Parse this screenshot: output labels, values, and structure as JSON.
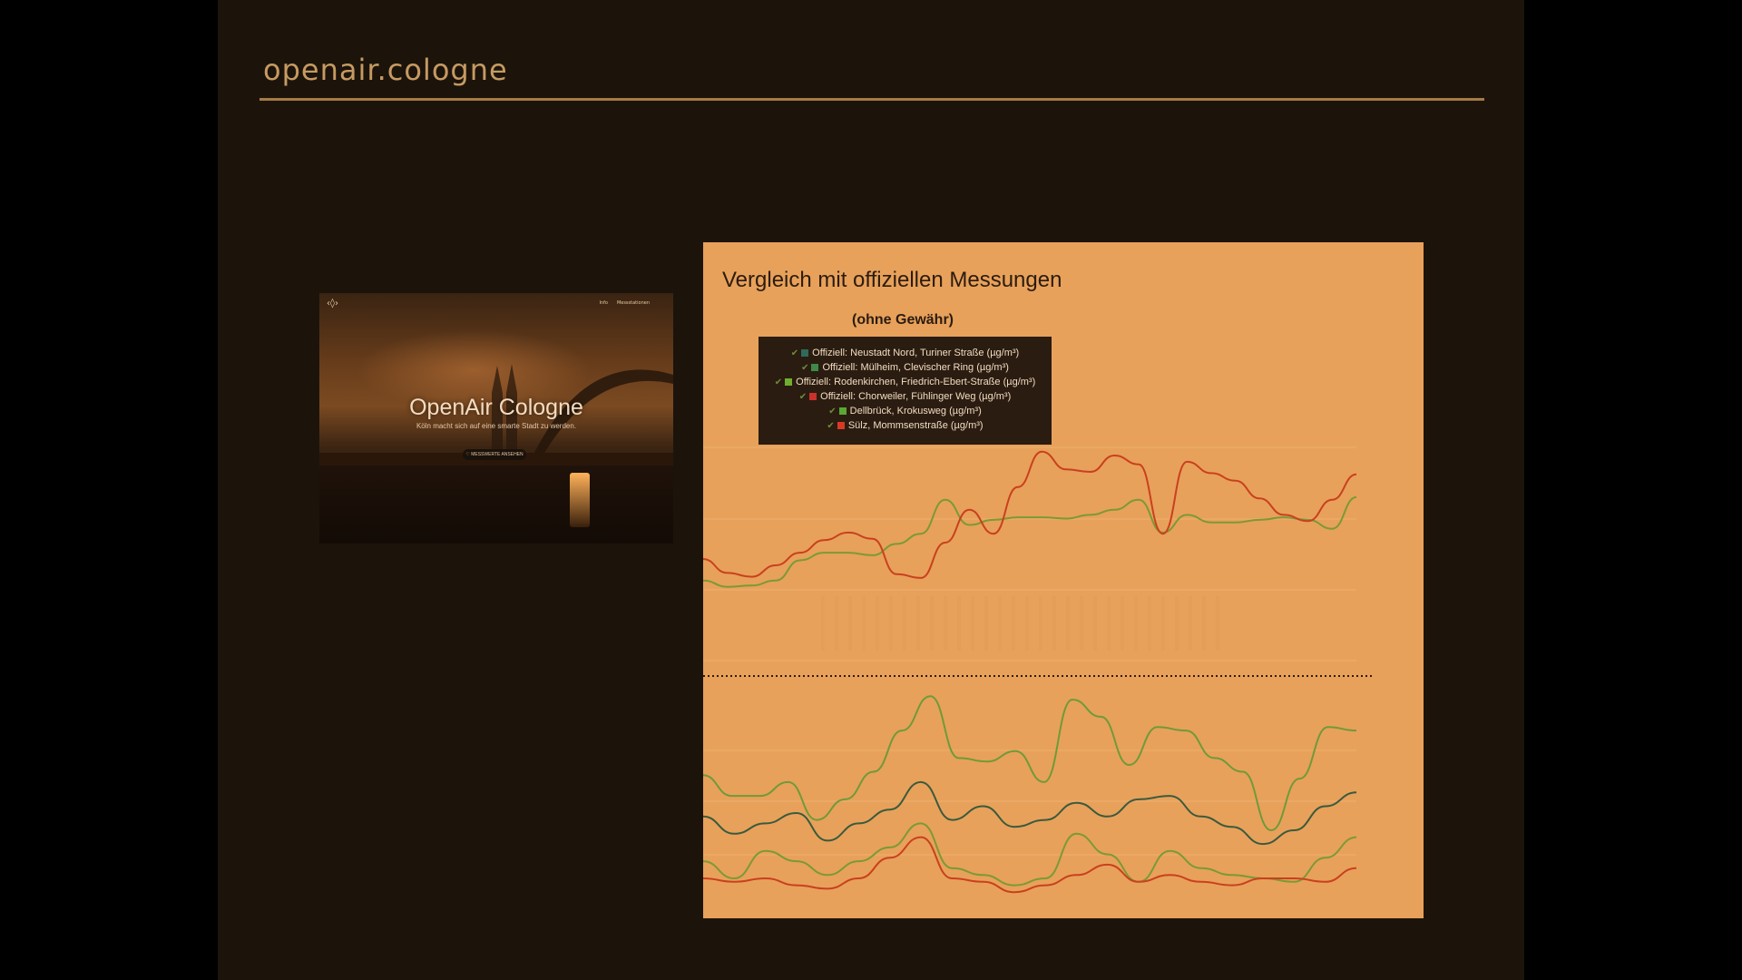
{
  "slide": {
    "title": "openair.cologne"
  },
  "thumbnail": {
    "logo": "‹◊›",
    "nav": [
      "Info",
      "Messstationen"
    ],
    "heading": "OpenAir Cologne",
    "subtitle": "Köln macht sich auf eine smarte Stadt zu werden.",
    "button": "♡ MESSWERTE ANSEHEN"
  },
  "chart": {
    "title": "Vergleich mit offiziellen Messungen",
    "subtitle": "(ohne Gewähr)",
    "legend": [
      {
        "label": "Offiziell: Neustadt Nord, Turiner Straße (µg/m³)",
        "color": "#2f6a5a"
      },
      {
        "label": "Offiziell: Mülheim, Clevischer Ring (µg/m³)",
        "color": "#3f8a48"
      },
      {
        "label": "Offiziell: Rodenkirchen, Friedrich-Ebert-Straße (µg/m³)",
        "color": "#6fae2e"
      },
      {
        "label": "Offiziell: Chorweiler, Fühlinger Weg (µg/m³)",
        "color": "#c8322a"
      },
      {
        "label": "Dellbrück, Krokusweg (µg/m³)",
        "color": "#5aa832"
      },
      {
        "label": "Sülz, Mommsenstraße (µg/m³)",
        "color": "#d83a26"
      }
    ],
    "colors": {
      "panel": "#e8a15a",
      "green_line": "#7a9a36",
      "red_line": "#c9401f",
      "teal_line": "#3a5a3e"
    }
  },
  "chart_data": {
    "type": "line",
    "title": "Vergleich mit offiziellen Messungen",
    "subtitle": "(ohne Gewähr)",
    "x": [
      0,
      1,
      2,
      3,
      4,
      5,
      6,
      7,
      8,
      9,
      10,
      11,
      12,
      13,
      14,
      15,
      16,
      17,
      18,
      19,
      20,
      21,
      22,
      23,
      24,
      25,
      26,
      27
    ],
    "upper_panel": {
      "series": [
        {
          "name": "Dellbrück, Krokusweg (µg/m³)",
          "color": "#7a9a36",
          "values": [
            0.96,
            0.91,
            0.92,
            0.96,
            1.12,
            1.18,
            1.18,
            1.16,
            1.25,
            1.33,
            1.6,
            1.4,
            1.44,
            1.46,
            1.46,
            1.45,
            1.48,
            1.52,
            1.6,
            1.34,
            1.48,
            1.42,
            1.42,
            1.44,
            1.46,
            1.44,
            1.37,
            1.62
          ]
        },
        {
          "name": "Sülz, Mommsenstraße (µg/m³)",
          "color": "#c9401f",
          "values": [
            1.13,
            1.02,
            0.99,
            1.08,
            1.18,
            1.28,
            1.34,
            1.29,
            1.01,
            0.98,
            1.26,
            1.52,
            1.33,
            1.7,
            1.98,
            1.84,
            1.82,
            1.95,
            1.88,
            1.33,
            1.9,
            1.81,
            1.75,
            1.61,
            1.48,
            1.43,
            1.6,
            1.8
          ]
        }
      ]
    },
    "lower_panel": {
      "series": [
        {
          "name": "Offiziell: Mülheim, Clevischer Ring (µg/m³)",
          "color": "#6f9a3a",
          "values": [
            3.5,
            2.9,
            2.9,
            3.3,
            2.2,
            2.8,
            3.6,
            4.8,
            5.8,
            4.0,
            3.9,
            4.2,
            3.3,
            5.7,
            5.2,
            3.8,
            4.9,
            4.8,
            4.0,
            3.6,
            1.9,
            3.4,
            4.9,
            4.8
          ]
        },
        {
          "name": "Offiziell: Neustadt Nord, Turiner Straße (µg/m³)",
          "color": "#3a5a3e",
          "values": [
            2.3,
            1.8,
            2.1,
            2.4,
            1.6,
            2.1,
            2.5,
            3.3,
            2.2,
            2.6,
            2.0,
            2.2,
            2.7,
            2.3,
            2.8,
            2.9,
            2.3,
            2.0,
            1.5,
            1.9,
            2.6,
            3.0
          ]
        },
        {
          "name": "Offiziell: Rodenkirchen, Friedrich-Ebert-Straße (µg/m³)",
          "color": "#7a9a36",
          "values": [
            1.0,
            0.5,
            1.3,
            1.0,
            0.6,
            1.0,
            1.4,
            2.1,
            0.8,
            0.6,
            0.3,
            0.5,
            1.8,
            1.2,
            0.4,
            1.3,
            0.8,
            0.6,
            0.5,
            0.4,
            1.1,
            1.7
          ]
        },
        {
          "name": "Offiziell: Chorweiler, Fühlinger Weg (µg/m³)",
          "color": "#c9401f",
          "values": [
            0.5,
            0.4,
            0.5,
            0.3,
            0.2,
            0.5,
            1.1,
            1.7,
            0.5,
            0.4,
            0.1,
            0.3,
            0.6,
            0.9,
            0.4,
            0.6,
            0.4,
            0.3,
            0.5,
            0.5,
            0.4,
            0.8
          ]
        }
      ]
    },
    "xlabel": "",
    "ylabel": "",
    "legend_position": "top-left",
    "grid": true
  }
}
